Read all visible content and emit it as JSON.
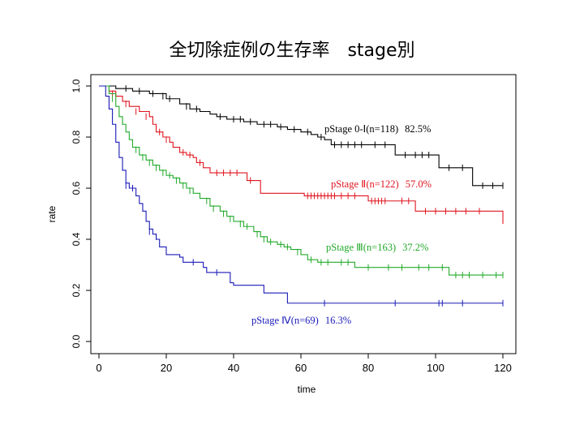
{
  "title": "全切除症例の生存率　stage別",
  "chart_data": {
    "type": "line",
    "title": "全切除症例の生存率　stage別",
    "xlabel": "time",
    "ylabel": "rate",
    "xlim": [
      0,
      120
    ],
    "ylim": [
      0,
      1
    ],
    "xticks": [
      "0",
      "20",
      "40",
      "60",
      "80",
      "100",
      "120"
    ],
    "yticks": [
      "0.0",
      "0.2",
      "0.4",
      "0.6",
      "0.8",
      "1.0"
    ],
    "grid": false,
    "series": [
      {
        "name": "pStage 0-Ⅰ",
        "n_label": "(n=118)",
        "rate_label": "82.5%",
        "color": "#000000",
        "points": [
          [
            0,
            1.0
          ],
          [
            5,
            0.99
          ],
          [
            10,
            0.98
          ],
          [
            15,
            0.97
          ],
          [
            20,
            0.95
          ],
          [
            24,
            0.93
          ],
          [
            27,
            0.91
          ],
          [
            30,
            0.9
          ],
          [
            33,
            0.89
          ],
          [
            35,
            0.88
          ],
          [
            38,
            0.87
          ],
          [
            43,
            0.86
          ],
          [
            47,
            0.85
          ],
          [
            53,
            0.84
          ],
          [
            56,
            0.83
          ],
          [
            60,
            0.82
          ],
          [
            63,
            0.81
          ],
          [
            65,
            0.8
          ],
          [
            67,
            0.79
          ],
          [
            69,
            0.77
          ],
          [
            88,
            0.77
          ],
          [
            88,
            0.73
          ],
          [
            101,
            0.73
          ],
          [
            101,
            0.68
          ],
          [
            111,
            0.68
          ],
          [
            111,
            0.61
          ],
          [
            120,
            0.61
          ]
        ],
        "censors": [
          [
            8,
            0.99
          ],
          [
            12,
            0.98
          ],
          [
            16,
            0.97
          ],
          [
            19,
            0.96
          ],
          [
            21,
            0.95
          ],
          [
            26,
            0.92
          ],
          [
            29,
            0.91
          ],
          [
            36,
            0.88
          ],
          [
            40,
            0.87
          ],
          [
            42,
            0.87
          ],
          [
            45,
            0.86
          ],
          [
            49,
            0.85
          ],
          [
            51,
            0.85
          ],
          [
            54,
            0.84
          ],
          [
            58,
            0.83
          ],
          [
            62,
            0.82
          ],
          [
            66,
            0.8
          ],
          [
            70,
            0.77
          ],
          [
            72,
            0.77
          ],
          [
            74,
            0.77
          ],
          [
            76,
            0.77
          ],
          [
            78,
            0.77
          ],
          [
            82,
            0.77
          ],
          [
            85,
            0.77
          ],
          [
            91,
            0.73
          ],
          [
            94,
            0.73
          ],
          [
            96,
            0.73
          ],
          [
            98,
            0.73
          ],
          [
            104,
            0.68
          ],
          [
            108,
            0.68
          ],
          [
            114,
            0.61
          ],
          [
            117,
            0.61
          ],
          [
            120,
            0.61
          ]
        ]
      },
      {
        "name": "pStage Ⅱ",
        "n_label": "(n=122)",
        "rate_label": "57.0%",
        "color": "#e0141e",
        "points": [
          [
            0,
            1.0
          ],
          [
            3,
            0.98
          ],
          [
            5,
            0.96
          ],
          [
            7,
            0.94
          ],
          [
            9,
            0.92
          ],
          [
            12,
            0.9
          ],
          [
            15,
            0.88
          ],
          [
            16,
            0.85
          ],
          [
            17,
            0.82
          ],
          [
            19,
            0.8
          ],
          [
            21,
            0.78
          ],
          [
            22,
            0.76
          ],
          [
            24,
            0.74
          ],
          [
            26,
            0.73
          ],
          [
            28,
            0.72
          ],
          [
            29,
            0.7
          ],
          [
            31,
            0.68
          ],
          [
            33,
            0.66
          ],
          [
            43,
            0.66
          ],
          [
            44,
            0.63
          ],
          [
            47,
            0.63
          ],
          [
            48,
            0.58
          ],
          [
            60,
            0.58
          ],
          [
            61,
            0.57
          ],
          [
            79,
            0.57
          ],
          [
            80,
            0.55
          ],
          [
            93,
            0.55
          ],
          [
            94,
            0.51
          ],
          [
            120,
            0.51
          ],
          [
            120,
            0.46
          ]
        ],
        "censors": [
          [
            4,
            0.97
          ],
          [
            8,
            0.93
          ],
          [
            11,
            0.9
          ],
          [
            14,
            0.88
          ],
          [
            18,
            0.82
          ],
          [
            20,
            0.79
          ],
          [
            25,
            0.74
          ],
          [
            27,
            0.73
          ],
          [
            30,
            0.7
          ],
          [
            35,
            0.66
          ],
          [
            37,
            0.66
          ],
          [
            39,
            0.66
          ],
          [
            41,
            0.66
          ],
          [
            45,
            0.63
          ],
          [
            62,
            0.57
          ],
          [
            63,
            0.57
          ],
          [
            64,
            0.57
          ],
          [
            65,
            0.57
          ],
          [
            66,
            0.57
          ],
          [
            67,
            0.57
          ],
          [
            68,
            0.57
          ],
          [
            69,
            0.57
          ],
          [
            70,
            0.57
          ],
          [
            72,
            0.57
          ],
          [
            74,
            0.57
          ],
          [
            76,
            0.57
          ],
          [
            81,
            0.55
          ],
          [
            82,
            0.55
          ],
          [
            83,
            0.55
          ],
          [
            84,
            0.55
          ],
          [
            85,
            0.55
          ],
          [
            90,
            0.55
          ],
          [
            92,
            0.55
          ],
          [
            97,
            0.51
          ],
          [
            100,
            0.51
          ],
          [
            103,
            0.51
          ],
          [
            106,
            0.51
          ],
          [
            109,
            0.51
          ],
          [
            113,
            0.51
          ]
        ]
      },
      {
        "name": "pStage Ⅲ",
        "n_label": "(n=163)",
        "rate_label": "37.2%",
        "color": "#22aa2a",
        "points": [
          [
            0,
            1.0
          ],
          [
            3,
            0.97
          ],
          [
            5,
            0.92
          ],
          [
            6,
            0.88
          ],
          [
            7,
            0.85
          ],
          [
            8,
            0.82
          ],
          [
            9,
            0.79
          ],
          [
            10,
            0.76
          ],
          [
            12,
            0.73
          ],
          [
            14,
            0.71
          ],
          [
            16,
            0.69
          ],
          [
            18,
            0.67
          ],
          [
            20,
            0.65
          ],
          [
            22,
            0.64
          ],
          [
            24,
            0.62
          ],
          [
            26,
            0.6
          ],
          [
            28,
            0.58
          ],
          [
            30,
            0.56
          ],
          [
            33,
            0.53
          ],
          [
            36,
            0.51
          ],
          [
            38,
            0.49
          ],
          [
            40,
            0.47
          ],
          [
            43,
            0.45
          ],
          [
            46,
            0.43
          ],
          [
            48,
            0.41
          ],
          [
            50,
            0.39
          ],
          [
            53,
            0.38
          ],
          [
            55,
            0.37
          ],
          [
            57,
            0.36
          ],
          [
            60,
            0.34
          ],
          [
            62,
            0.32
          ],
          [
            65,
            0.31
          ],
          [
            70,
            0.31
          ],
          [
            76,
            0.29
          ],
          [
            104,
            0.29
          ],
          [
            104,
            0.26
          ],
          [
            120,
            0.26
          ]
        ],
        "censors": [
          [
            4,
            0.95
          ],
          [
            7,
            0.86
          ],
          [
            11,
            0.75
          ],
          [
            13,
            0.72
          ],
          [
            15,
            0.7
          ],
          [
            17,
            0.68
          ],
          [
            19,
            0.66
          ],
          [
            21,
            0.65
          ],
          [
            23,
            0.63
          ],
          [
            25,
            0.61
          ],
          [
            27,
            0.59
          ],
          [
            32,
            0.55
          ],
          [
            34,
            0.52
          ],
          [
            37,
            0.5
          ],
          [
            39,
            0.48
          ],
          [
            42,
            0.46
          ],
          [
            44,
            0.45
          ],
          [
            47,
            0.42
          ],
          [
            49,
            0.4
          ],
          [
            51,
            0.39
          ],
          [
            54,
            0.38
          ],
          [
            56,
            0.37
          ],
          [
            59,
            0.35
          ],
          [
            63,
            0.32
          ],
          [
            66,
            0.31
          ],
          [
            68,
            0.31
          ],
          [
            72,
            0.31
          ],
          [
            74,
            0.31
          ],
          [
            80,
            0.29
          ],
          [
            86,
            0.29
          ],
          [
            90,
            0.29
          ],
          [
            95,
            0.29
          ],
          [
            98,
            0.29
          ],
          [
            102,
            0.29
          ],
          [
            106,
            0.26
          ],
          [
            108,
            0.26
          ],
          [
            110,
            0.26
          ],
          [
            114,
            0.26
          ],
          [
            118,
            0.26
          ],
          [
            120,
            0.26
          ]
        ]
      },
      {
        "name": "pStage Ⅳ",
        "n_label": "(n=69)",
        "rate_label": "16.3%",
        "color": "#1a1ab8",
        "points": [
          [
            0,
            1.0
          ],
          [
            2,
            0.96
          ],
          [
            3,
            0.91
          ],
          [
            4,
            0.85
          ],
          [
            5,
            0.78
          ],
          [
            6,
            0.72
          ],
          [
            7,
            0.67
          ],
          [
            8,
            0.62
          ],
          [
            9,
            0.6
          ],
          [
            11,
            0.57
          ],
          [
            12,
            0.54
          ],
          [
            13,
            0.51
          ],
          [
            14,
            0.47
          ],
          [
            15,
            0.44
          ],
          [
            16,
            0.42
          ],
          [
            17,
            0.4
          ],
          [
            18,
            0.37
          ],
          [
            20,
            0.34
          ],
          [
            24,
            0.33
          ],
          [
            25,
            0.31
          ],
          [
            31,
            0.29
          ],
          [
            32,
            0.27
          ],
          [
            38,
            0.27
          ],
          [
            39,
            0.23
          ],
          [
            40,
            0.22
          ],
          [
            48,
            0.22
          ],
          [
            49,
            0.19
          ],
          [
            55,
            0.19
          ],
          [
            56,
            0.15
          ],
          [
            120,
            0.15
          ]
        ],
        "censors": [
          [
            8,
            0.61
          ],
          [
            10,
            0.6
          ],
          [
            15,
            0.43
          ],
          [
            17,
            0.41
          ],
          [
            28,
            0.31
          ],
          [
            35,
            0.27
          ],
          [
            67,
            0.15
          ],
          [
            88,
            0.15
          ],
          [
            101,
            0.15
          ],
          [
            102,
            0.15
          ],
          [
            108,
            0.15
          ],
          [
            120,
            0.15
          ]
        ]
      }
    ]
  }
}
